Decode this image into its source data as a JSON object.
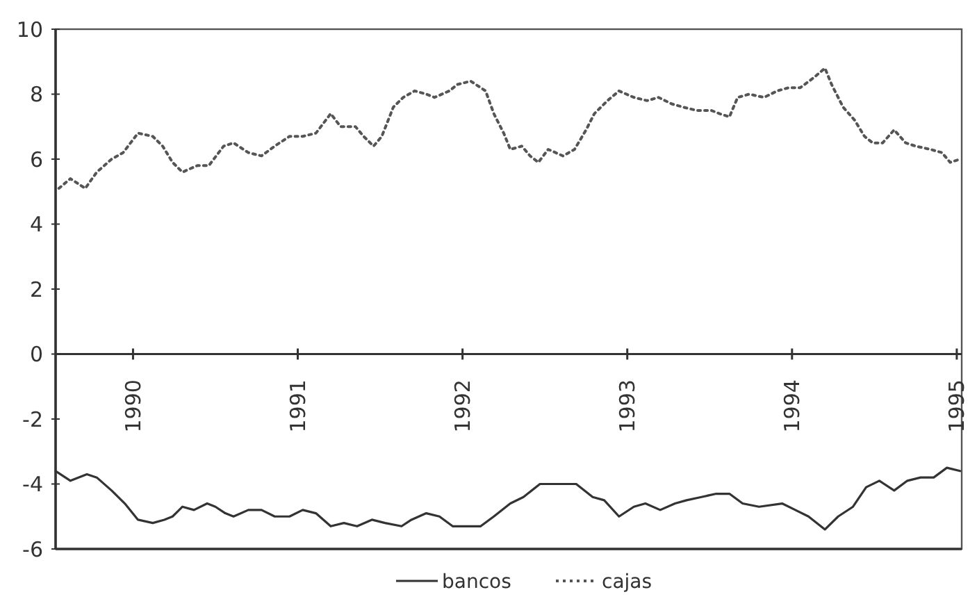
{
  "chart_data": {
    "type": "line",
    "ylim": [
      -6,
      10
    ],
    "yticks": [
      -6,
      -4,
      -2,
      0,
      2,
      4,
      6,
      8,
      10
    ],
    "xlim": [
      1989.53,
      1995.03
    ],
    "xticks": [
      1990,
      1991,
      1992,
      1993,
      1994,
      1995
    ],
    "grid": false,
    "legend": "bottom",
    "marker": "none",
    "series": [
      {
        "name": "bancos",
        "color": "#333333",
        "line_style": "solid",
        "x": [
          1989.53,
          1989.62,
          1989.72,
          1989.78,
          1989.87,
          1989.95,
          1990.03,
          1990.12,
          1990.19,
          1990.24,
          1990.3,
          1990.37,
          1990.45,
          1990.5,
          1990.56,
          1990.61,
          1990.7,
          1990.78,
          1990.86,
          1990.95,
          1991.03,
          1991.11,
          1991.2,
          1991.28,
          1991.36,
          1991.45,
          1991.53,
          1991.63,
          1991.69,
          1991.78,
          1991.86,
          1991.94,
          1992.03,
          1992.11,
          1992.19,
          1992.29,
          1992.37,
          1992.47,
          1992.58,
          1992.69,
          1992.79,
          1992.86,
          1992.95,
          1993.04,
          1993.11,
          1993.2,
          1993.29,
          1993.36,
          1993.45,
          1993.54,
          1993.62,
          1993.7,
          1993.8,
          1993.94,
          1994.02,
          1994.1,
          1994.2,
          1994.28,
          1994.37,
          1994.45,
          1994.53,
          1994.62,
          1994.7,
          1994.78,
          1994.86,
          1994.94,
          1995.02
        ],
        "values": [
          -3.6,
          -3.9,
          -3.7,
          -3.8,
          -4.2,
          -4.6,
          -5.1,
          -5.2,
          -5.1,
          -5.0,
          -4.7,
          -4.8,
          -4.6,
          -4.7,
          -4.9,
          -5.0,
          -4.8,
          -4.8,
          -5.0,
          -5.0,
          -4.8,
          -4.9,
          -5.3,
          -5.2,
          -5.3,
          -5.1,
          -5.2,
          -5.3,
          -5.1,
          -4.9,
          -5.0,
          -5.3,
          -5.3,
          -5.3,
          -5.0,
          -4.6,
          -4.4,
          -4.0,
          -4.0,
          -4.0,
          -4.4,
          -4.5,
          -5.0,
          -4.7,
          -4.6,
          -4.8,
          -4.6,
          -4.5,
          -4.4,
          -4.3,
          -4.3,
          -4.6,
          -4.7,
          -4.6,
          -4.8,
          -5.0,
          -5.4,
          -5.0,
          -4.7,
          -4.1,
          -3.9,
          -4.2,
          -3.9,
          -3.8,
          -3.8,
          -3.5,
          -3.6
        ]
      },
      {
        "name": "cajas",
        "color": "#555555",
        "line_style": "dotted",
        "x": [
          1989.55,
          1989.62,
          1989.71,
          1989.78,
          1989.87,
          1989.94,
          1990.03,
          1990.12,
          1990.18,
          1990.24,
          1990.3,
          1990.39,
          1990.46,
          1990.55,
          1990.61,
          1990.7,
          1990.78,
          1990.86,
          1990.95,
          1991.03,
          1991.11,
          1991.2,
          1991.26,
          1991.35,
          1991.4,
          1991.46,
          1991.51,
          1991.58,
          1991.64,
          1991.71,
          1991.78,
          1991.83,
          1991.92,
          1991.97,
          1992.05,
          1992.14,
          1992.19,
          1992.25,
          1992.29,
          1992.36,
          1992.41,
          1992.46,
          1992.52,
          1992.61,
          1992.68,
          1992.75,
          1992.8,
          1992.88,
          1992.95,
          1993.04,
          1993.12,
          1993.19,
          1993.27,
          1993.34,
          1993.42,
          1993.51,
          1993.56,
          1993.62,
          1993.67,
          1993.74,
          1993.83,
          1993.91,
          1993.98,
          1994.05,
          1994.13,
          1994.2,
          1994.24,
          1994.31,
          1994.38,
          1994.44,
          1994.49,
          1994.55,
          1994.62,
          1994.69,
          1994.75,
          1994.84,
          1994.91,
          1994.96,
          1995.02
        ],
        "values": [
          5.1,
          5.4,
          5.1,
          5.6,
          6.0,
          6.2,
          6.8,
          6.7,
          6.4,
          5.9,
          5.6,
          5.8,
          5.8,
          6.4,
          6.5,
          6.2,
          6.1,
          6.4,
          6.7,
          6.7,
          6.8,
          7.4,
          7.0,
          7.0,
          6.7,
          6.4,
          6.7,
          7.6,
          7.9,
          8.1,
          8.0,
          7.9,
          8.1,
          8.3,
          8.4,
          8.1,
          7.4,
          6.8,
          6.3,
          6.4,
          6.1,
          5.9,
          6.3,
          6.1,
          6.3,
          6.9,
          7.4,
          7.8,
          8.1,
          7.9,
          7.8,
          7.9,
          7.7,
          7.6,
          7.5,
          7.5,
          7.4,
          7.3,
          7.9,
          8.0,
          7.9,
          8.1,
          8.2,
          8.2,
          8.5,
          8.8,
          8.3,
          7.6,
          7.2,
          6.7,
          6.5,
          6.5,
          6.9,
          6.5,
          6.4,
          6.3,
          6.2,
          5.9,
          6.0
        ]
      }
    ]
  }
}
